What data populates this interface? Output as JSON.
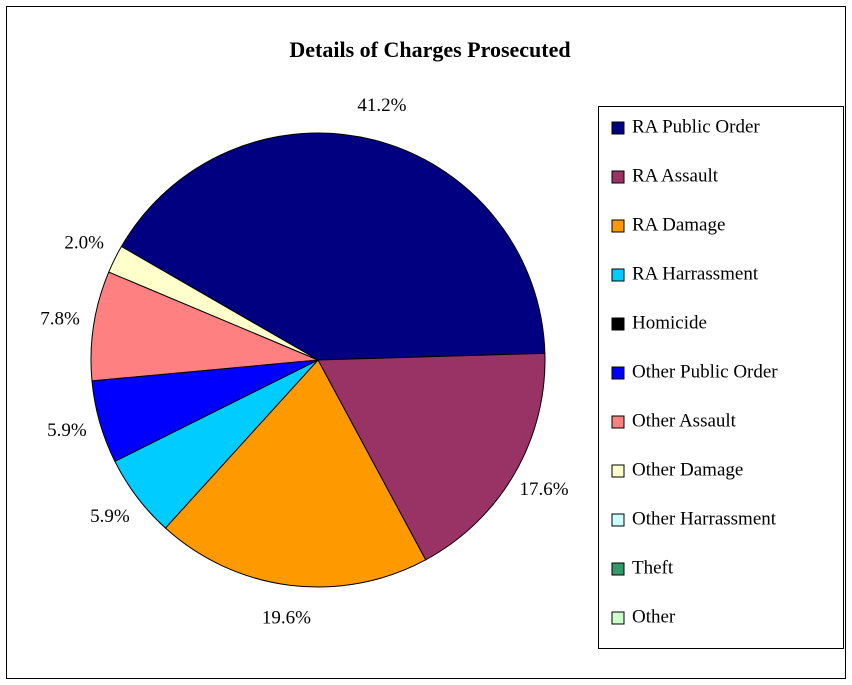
{
  "chart_data": {
    "type": "pie",
    "title": "Details of Charges Prosecuted",
    "categories": [
      "RA Public Order",
      "RA Assault",
      "RA Damage",
      "RA Harrassment",
      "Homicide",
      "Other Public Order",
      "Other Assault",
      "Other Damage",
      "Other Harrassment",
      "Theft",
      "Other"
    ],
    "values": [
      41.2,
      17.6,
      19.6,
      5.9,
      0,
      5.9,
      7.8,
      2.0,
      0,
      0,
      0
    ],
    "value_labels": [
      "41.2%",
      "17.6%",
      "19.6%",
      "5.9%",
      null,
      "5.9%",
      "7.8%",
      "2.0%",
      null,
      null,
      null
    ],
    "colors": [
      "#000080",
      "#993366",
      "#ff9900",
      "#00ccff",
      "#000000",
      "#0000ff",
      "#ff8080",
      "#ffffcc",
      "#ccffff",
      "#339966",
      "#ccffcc"
    ],
    "legend": "right"
  }
}
